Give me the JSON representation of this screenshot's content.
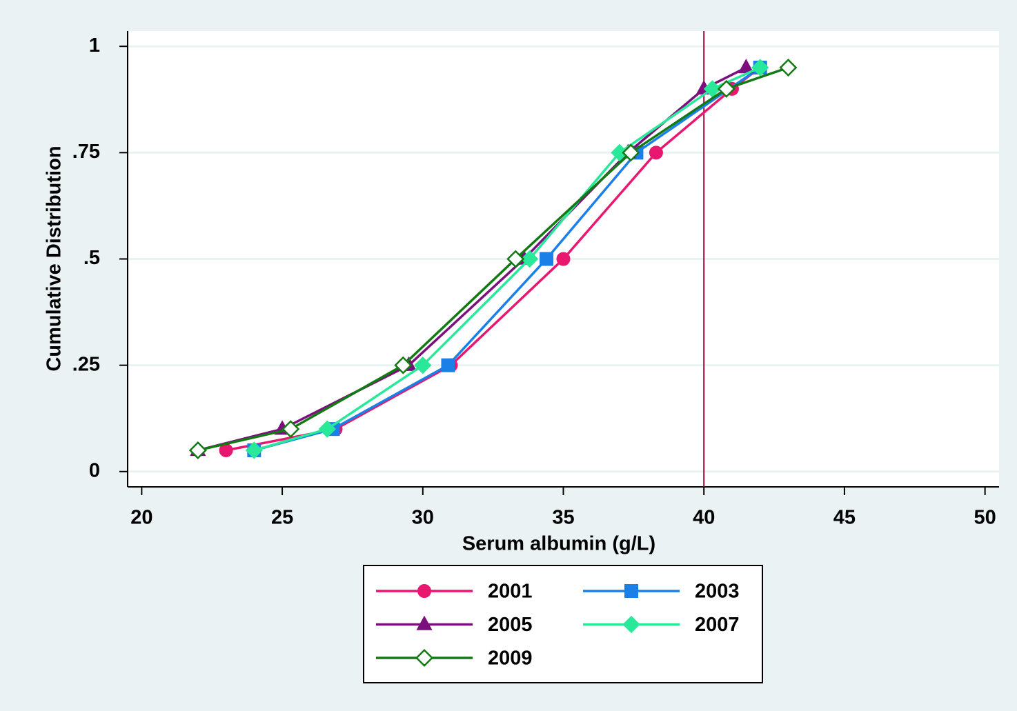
{
  "chart_data": {
    "type": "line",
    "x_label": "Serum albumin (g/L)",
    "y_label": "Cumulative Distribution",
    "xlim": [
      19.5,
      50.5
    ],
    "ylim": [
      -0.036,
      1.036
    ],
    "xticks": [
      20,
      25,
      30,
      35,
      40,
      45,
      50
    ],
    "yticks": [
      0,
      {
        "value": 0.25,
        "label": ".25"
      },
      {
        "value": 0.5,
        "label": ".5"
      },
      {
        "value": 0.75,
        "label": ".75"
      },
      1
    ],
    "grid": true,
    "reference_line": {
      "x": 40,
      "color": "#9b0a3c"
    },
    "legend": "bottom",
    "series": [
      {
        "name": "2001",
        "color": "#e8176f",
        "marker": "circle",
        "x": [
          23,
          26.9,
          31,
          35,
          38.3,
          41,
          42
        ],
        "values": [
          0.05,
          0.1,
          0.25,
          0.5,
          0.75,
          0.9,
          0.95
        ]
      },
      {
        "name": "2003",
        "color": "#1b7fe8",
        "marker": "square",
        "x": [
          24,
          26.8,
          30.9,
          34.4,
          37.6,
          42
        ],
        "values": [
          0.05,
          0.1,
          0.25,
          0.5,
          0.75,
          0.95
        ]
      },
      {
        "name": "2005",
        "color": "#7a0f7d",
        "marker": "triangle",
        "x": [
          22,
          25,
          29.5,
          33.6,
          37.3,
          40,
          41.5
        ],
        "values": [
          0.05,
          0.1,
          0.25,
          0.5,
          0.75,
          0.9,
          0.95
        ]
      },
      {
        "name": "2007",
        "color": "#2ae89a",
        "marker": "diamond",
        "x": [
          24,
          26.6,
          30,
          33.8,
          37,
          40.3,
          42
        ],
        "values": [
          0.05,
          0.1,
          0.25,
          0.5,
          0.75,
          0.9,
          0.95
        ]
      },
      {
        "name": "2009",
        "color": "#137a13",
        "marker": "hollow-diamond",
        "x": [
          22,
          25.3,
          29.3,
          33.3,
          37.4,
          40.8,
          43
        ],
        "values": [
          0.05,
          0.1,
          0.25,
          0.5,
          0.75,
          0.9,
          0.95
        ]
      }
    ]
  }
}
